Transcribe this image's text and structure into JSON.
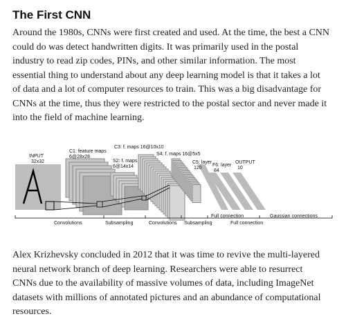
{
  "title": "The First CNN",
  "paragraphs": [
    [
      "Around the 1980s, CNNs were first created and used. At the time, the best a CNN",
      "could do was detect handwritten digits. It was primarily used in the postal",
      "industry to read zip codes, PINs, and other similar information. The most",
      "essential thing to understand about any deep learning model is that it takes a lot",
      "of data and a lot of computer resources to train. This was a big disadvantage for",
      "CNNs at the time, thus they were restricted to the postal sector and never made it",
      "into the field of machine learning."
    ],
    [
      "Alex Krizhevsky concluded in 2012 that it was time to revive the multi-layered",
      "neural network branch of deep learning. Researchers were able to resurrect",
      "CNNs due to the availability of massive volumes of data, including ImageNet",
      "datasets with millions of annotated pictures and an abundance of computational",
      "resources."
    ]
  ],
  "figure": {
    "labels": [
      [
        "INPUT",
        "32x32"
      ],
      [
        "C1: feature maps",
        "6@28x28"
      ],
      [
        "C3: f. maps 16@10x10"
      ],
      [
        "S2: f. maps",
        "6@14x14"
      ],
      [
        "S4: f. maps 16@5x5"
      ],
      [
        "C5: layer",
        "120"
      ],
      [
        "F6: layer",
        "84"
      ],
      [
        "OUTPUT",
        "10"
      ],
      [
        "Convolutions"
      ],
      [
        "Subsampling"
      ],
      [
        "Convolutions"
      ],
      [
        "Subsampling"
      ],
      [
        "Full connection"
      ],
      [
        "Full connection"
      ],
      [
        "Gaussian connections"
      ]
    ]
  }
}
